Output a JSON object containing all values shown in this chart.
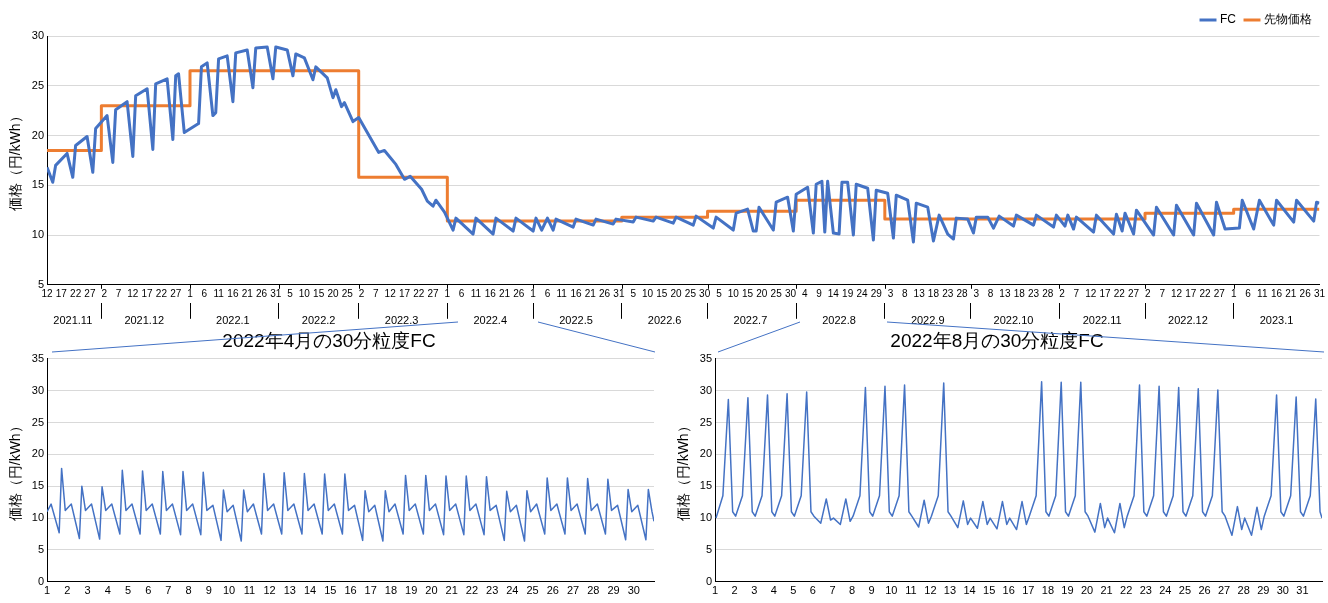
{
  "chart_data": [
    {
      "type": "line",
      "ylabel": "価格（円/kWh）",
      "xlim": [
        "2021-11-12",
        "2023-01-31"
      ],
      "xticks": [
        {
          "value": "2021-11-12",
          "label": "12"
        },
        {
          "value": "2021-11-17",
          "label": "17"
        },
        {
          "value": "2021-11-22",
          "label": "22"
        },
        {
          "value": "2021-11-27",
          "label": "27"
        },
        {
          "value": "2021-12-02",
          "label": "2"
        },
        {
          "value": "2021-12-07",
          "label": "7"
        },
        {
          "value": "2021-12-12",
          "label": "12"
        },
        {
          "value": "2021-12-17",
          "label": "17"
        },
        {
          "value": "2021-12-22",
          "label": "22"
        },
        {
          "value": "2021-12-27",
          "label": "27"
        },
        {
          "value": "2022-01-01",
          "label": "1"
        },
        {
          "value": "2022-01-06",
          "label": "6"
        },
        {
          "value": "2022-01-11",
          "label": "11"
        },
        {
          "value": "2022-01-16",
          "label": "16"
        },
        {
          "value": "2022-01-21",
          "label": "21"
        },
        {
          "value": "2022-01-26",
          "label": "26"
        },
        {
          "value": "2022-01-31",
          "label": "31"
        },
        {
          "value": "2022-02-05",
          "label": "5"
        },
        {
          "value": "2022-02-10",
          "label": "10"
        },
        {
          "value": "2022-02-15",
          "label": "15"
        },
        {
          "value": "2022-02-20",
          "label": "20"
        },
        {
          "value": "2022-02-25",
          "label": "25"
        },
        {
          "value": "2022-03-02",
          "label": "2"
        },
        {
          "value": "2022-03-07",
          "label": "7"
        },
        {
          "value": "2022-03-12",
          "label": "12"
        },
        {
          "value": "2022-03-17",
          "label": "17"
        },
        {
          "value": "2022-03-22",
          "label": "22"
        },
        {
          "value": "2022-03-27",
          "label": "27"
        },
        {
          "value": "2022-04-01",
          "label": "1"
        },
        {
          "value": "2022-04-06",
          "label": "6"
        },
        {
          "value": "2022-04-11",
          "label": "11"
        },
        {
          "value": "2022-04-16",
          "label": "16"
        },
        {
          "value": "2022-04-21",
          "label": "21"
        },
        {
          "value": "2022-04-26",
          "label": "26"
        },
        {
          "value": "2022-05-01",
          "label": "1"
        },
        {
          "value": "2022-05-06",
          "label": "6"
        },
        {
          "value": "2022-05-11",
          "label": "11"
        },
        {
          "value": "2022-05-16",
          "label": "16"
        },
        {
          "value": "2022-05-21",
          "label": "21"
        },
        {
          "value": "2022-05-26",
          "label": "26"
        },
        {
          "value": "2022-05-31",
          "label": "31"
        },
        {
          "value": "2022-06-05",
          "label": "5"
        },
        {
          "value": "2022-06-10",
          "label": "10"
        },
        {
          "value": "2022-06-15",
          "label": "15"
        },
        {
          "value": "2022-06-20",
          "label": "20"
        },
        {
          "value": "2022-06-25",
          "label": "25"
        },
        {
          "value": "2022-06-30",
          "label": "30"
        },
        {
          "value": "2022-07-05",
          "label": "5"
        },
        {
          "value": "2022-07-10",
          "label": "10"
        },
        {
          "value": "2022-07-15",
          "label": "15"
        },
        {
          "value": "2022-07-20",
          "label": "20"
        },
        {
          "value": "2022-07-25",
          "label": "25"
        },
        {
          "value": "2022-07-30",
          "label": "30"
        },
        {
          "value": "2022-08-04",
          "label": "4"
        },
        {
          "value": "2022-08-09",
          "label": "9"
        },
        {
          "value": "2022-08-14",
          "label": "14"
        },
        {
          "value": "2022-08-19",
          "label": "19"
        },
        {
          "value": "2022-08-24",
          "label": "24"
        },
        {
          "value": "2022-08-29",
          "label": "29"
        },
        {
          "value": "2022-09-03",
          "label": "3"
        },
        {
          "value": "2022-09-08",
          "label": "8"
        },
        {
          "value": "2022-09-13",
          "label": "13"
        },
        {
          "value": "2022-09-18",
          "label": "18"
        },
        {
          "value": "2022-09-23",
          "label": "23"
        },
        {
          "value": "2022-09-28",
          "label": "28"
        },
        {
          "value": "2022-10-03",
          "label": "3"
        },
        {
          "value": "2022-10-08",
          "label": "8"
        },
        {
          "value": "2022-10-13",
          "label": "13"
        },
        {
          "value": "2022-10-18",
          "label": "18"
        },
        {
          "value": "2022-10-23",
          "label": "23"
        },
        {
          "value": "2022-10-28",
          "label": "28"
        },
        {
          "value": "2022-11-02",
          "label": "2"
        },
        {
          "value": "2022-11-07",
          "label": "7"
        },
        {
          "value": "2022-11-12",
          "label": "12"
        },
        {
          "value": "2022-11-17",
          "label": "17"
        },
        {
          "value": "2022-11-22",
          "label": "22"
        },
        {
          "value": "2022-11-27",
          "label": "27"
        },
        {
          "value": "2022-12-02",
          "label": "2"
        },
        {
          "value": "2022-12-07",
          "label": "7"
        },
        {
          "value": "2022-12-12",
          "label": "12"
        },
        {
          "value": "2022-12-17",
          "label": "17"
        },
        {
          "value": "2022-12-22",
          "label": "22"
        },
        {
          "value": "2022-12-27",
          "label": "27"
        },
        {
          "value": "2023-01-01",
          "label": "1"
        },
        {
          "value": "2023-01-06",
          "label": "6"
        },
        {
          "value": "2023-01-11",
          "label": "11"
        },
        {
          "value": "2023-01-16",
          "label": "16"
        },
        {
          "value": "2023-01-21",
          "label": "21"
        },
        {
          "value": "2023-01-26",
          "label": "26"
        },
        {
          "value": "2023-01-31",
          "label": "31"
        }
      ],
      "x2lim": [
        "2021-11-12",
        "2023-01-31"
      ],
      "x2ticks": [
        {
          "value": "2021-11-21",
          "label": "2021.11"
        },
        {
          "value": "2021-12-01",
          "label": null
        },
        {
          "value": "2021-12-16",
          "label": "2021.12"
        },
        {
          "value": "2022-01-01",
          "label": null
        },
        {
          "value": "2022-01-16",
          "label": "2022.1"
        },
        {
          "value": "2022-02-01",
          "label": null
        },
        {
          "value": "2022-02-15",
          "label": "2022.2"
        },
        {
          "value": "2022-03-01",
          "label": null
        },
        {
          "value": "2022-03-16",
          "label": "2022.3"
        },
        {
          "value": "2022-04-01",
          "label": null
        },
        {
          "value": "2022-04-16",
          "label": "2022.4"
        },
        {
          "value": "2022-05-01",
          "label": null
        },
        {
          "value": "2022-05-16",
          "label": "2022.5"
        },
        {
          "value": "2022-06-01",
          "label": null
        },
        {
          "value": "2022-06-16",
          "label": "2022.6"
        },
        {
          "value": "2022-07-01",
          "label": null
        },
        {
          "value": "2022-07-16",
          "label": "2022.7"
        },
        {
          "value": "2022-08-01",
          "label": null
        },
        {
          "value": "2022-08-16",
          "label": "2022.8"
        },
        {
          "value": "2022-09-01",
          "label": null
        },
        {
          "value": "2022-09-16",
          "label": "2022.9"
        },
        {
          "value": "2022-10-01",
          "label": null
        },
        {
          "value": "2022-10-16",
          "label": "2022.10"
        },
        {
          "value": "2022-11-01",
          "label": null
        },
        {
          "value": "2022-11-16",
          "label": "2022.11"
        },
        {
          "value": "2022-12-01",
          "label": null
        },
        {
          "value": "2022-12-16",
          "label": "2022.12"
        },
        {
          "value": "2023-01-01",
          "label": null
        },
        {
          "value": "2023-01-16",
          "label": "2023.1"
        }
      ],
      "ylim": [
        5,
        30
      ],
      "yticks": [
        5,
        10,
        15,
        20,
        25,
        30
      ],
      "grid": "y",
      "legend": "top right",
      "marker": "none",
      "series": [
        {
          "name": "FC",
          "color": "#4472c4",
          "x": [
            "2021-11-12",
            "2021-11-14",
            "2021-11-15",
            "2021-11-19",
            "2021-11-21",
            "2021-11-22",
            "2021-11-26",
            "2021-11-28",
            "2021-11-29",
            "2021-12-03",
            "2021-12-05",
            "2021-12-06",
            "2021-12-10",
            "2021-12-12",
            "2021-12-13",
            "2021-12-17",
            "2021-12-19",
            "2021-12-20",
            "2021-12-24",
            "2021-12-26",
            "2021-12-27",
            "2021-12-28",
            "2021-12-30",
            "2022-01-04",
            "2022-01-05",
            "2022-01-07",
            "2022-01-09",
            "2022-01-10",
            "2022-01-11",
            "2022-01-14",
            "2022-01-16",
            "2022-01-17",
            "2022-01-21",
            "2022-01-23",
            "2022-01-24",
            "2022-01-28",
            "2022-01-30",
            "2022-01-31",
            "2022-02-04",
            "2022-02-06",
            "2022-02-07",
            "2022-02-10",
            "2022-02-13",
            "2022-02-14",
            "2022-02-18",
            "2022-02-20",
            "2022-02-21",
            "2022-02-23",
            "2022-02-24",
            "2022-02-27",
            "2022-03-01",
            "2022-03-04",
            "2022-03-08",
            "2022-03-10",
            "2022-03-14",
            "2022-03-17",
            "2022-03-19",
            "2022-03-23",
            "2022-03-25",
            "2022-03-27",
            "2022-03-28",
            "2022-03-31",
            "2022-04-03",
            "2022-04-04",
            "2022-04-10",
            "2022-04-11",
            "2022-04-17",
            "2022-04-18",
            "2022-04-24",
            "2022-04-25",
            "2022-05-01",
            "2022-05-02",
            "2022-05-04",
            "2022-05-06",
            "2022-05-08",
            "2022-05-09",
            "2022-05-15",
            "2022-05-16",
            "2022-05-22",
            "2022-05-23",
            "2022-05-29",
            "2022-05-30",
            "2022-06-05",
            "2022-06-06",
            "2022-06-12",
            "2022-06-13",
            "2022-06-19",
            "2022-06-20",
            "2022-06-26",
            "2022-06-27",
            "2022-07-03",
            "2022-07-04",
            "2022-07-10",
            "2022-07-11",
            "2022-07-15",
            "2022-07-17",
            "2022-07-18",
            "2022-07-19",
            "2022-07-24",
            "2022-07-25",
            "2022-07-29",
            "2022-07-31",
            "2022-08-01",
            "2022-08-05",
            "2022-08-07",
            "2022-08-08",
            "2022-08-10",
            "2022-08-11",
            "2022-08-12",
            "2022-08-14",
            "2022-08-16",
            "2022-08-17",
            "2022-08-19",
            "2022-08-21",
            "2022-08-22",
            "2022-08-26",
            "2022-08-28",
            "2022-08-29",
            "2022-09-02",
            "2022-09-04",
            "2022-09-05",
            "2022-09-09",
            "2022-09-11",
            "2022-09-12",
            "2022-09-16",
            "2022-09-18",
            "2022-09-20",
            "2022-09-23",
            "2022-09-25",
            "2022-09-26",
            "2022-09-30",
            "2022-10-02",
            "2022-10-03",
            "2022-10-07",
            "2022-10-09",
            "2022-10-11",
            "2022-10-16",
            "2022-10-17",
            "2022-10-23",
            "2022-10-24",
            "2022-10-30",
            "2022-10-31",
            "2022-11-03",
            "2022-11-04",
            "2022-11-06",
            "2022-11-07",
            "2022-11-13",
            "2022-11-14",
            "2022-11-20",
            "2022-11-21",
            "2022-11-23",
            "2022-11-24",
            "2022-11-27",
            "2022-11-28",
            "2022-12-04",
            "2022-12-05",
            "2022-12-11",
            "2022-12-12",
            "2022-12-18",
            "2022-12-19",
            "2022-12-25",
            "2022-12-26",
            "2022-12-29",
            "2023-01-03",
            "2023-01-04",
            "2023-01-08",
            "2023-01-10",
            "2023-01-15",
            "2023-01-16",
            "2023-01-22",
            "2023-01-23",
            "2023-01-29",
            "2023-01-30",
            "2023-01-31"
          ],
          "values": [
            16.8,
            15.3,
            17.0,
            18.2,
            15.8,
            19.0,
            19.9,
            16.3,
            20.7,
            22.0,
            17.3,
            22.6,
            23.4,
            17.9,
            24.0,
            24.7,
            18.6,
            25.2,
            25.7,
            19.6,
            26.0,
            26.2,
            20.3,
            21.2,
            26.9,
            27.3,
            22.0,
            22.3,
            27.7,
            28.0,
            23.4,
            28.3,
            28.6,
            24.8,
            28.8,
            28.9,
            25.7,
            28.9,
            28.6,
            26.0,
            28.2,
            27.8,
            25.6,
            26.9,
            25.8,
            23.8,
            24.6,
            22.9,
            23.3,
            21.4,
            21.8,
            20.3,
            18.3,
            18.5,
            17.1,
            15.6,
            15.9,
            14.6,
            13.4,
            12.9,
            13.5,
            12.3,
            10.5,
            11.7,
            10.1,
            11.7,
            10.1,
            11.7,
            10.4,
            11.7,
            10.4,
            11.7,
            10.5,
            11.7,
            10.5,
            11.6,
            10.8,
            11.6,
            11.0,
            11.6,
            11.1,
            11.6,
            11.3,
            11.8,
            11.4,
            11.8,
            11.2,
            11.8,
            11.0,
            11.9,
            10.7,
            11.8,
            10.5,
            12.2,
            12.6,
            10.4,
            10.4,
            12.8,
            10.5,
            13.3,
            13.8,
            10.4,
            14.1,
            14.8,
            10.2,
            15.1,
            15.4,
            10.3,
            15.4,
            10.2,
            10.1,
            15.3,
            15.3,
            10.0,
            15.1,
            14.7,
            9.5,
            14.5,
            14.2,
            9.7,
            14.0,
            13.5,
            9.3,
            13.2,
            12.8,
            9.4,
            12.0,
            10.1,
            9.6,
            11.7,
            11.6,
            10.2,
            11.8,
            11.8,
            10.7,
            11.9,
            10.9,
            12.0,
            11.0,
            12.0,
            10.8,
            12.0,
            10.9,
            12.0,
            10.6,
            11.8,
            10.3,
            12.0,
            10.1,
            12.1,
            10.4,
            12.2,
            10.1,
            12.5,
            10.0,
            12.8,
            10.0,
            13.0,
            10.0,
            13.2,
            10.0,
            13.3,
            10.6,
            10.7,
            13.5,
            10.6,
            13.5,
            11.0,
            13.5,
            11.3,
            13.5,
            11.4,
            13.3,
            13.2
          ]
        },
        {
          "name": "先物価格",
          "type": "step",
          "color": "#ed7d31",
          "x": [
            "2021-11-12",
            "2021-12-01",
            "2022-01-01",
            "2022-03-01",
            "2022-04-01",
            "2022-06-01",
            "2022-07-01",
            "2022-08-01",
            "2022-09-01",
            "2022-12-01",
            "2023-01-01",
            "2023-01-31"
          ],
          "values": [
            18.5,
            23.0,
            26.5,
            15.8,
            11.4,
            11.8,
            12.4,
            13.5,
            11.6,
            12.2,
            12.6,
            12.6
          ]
        }
      ]
    },
    {
      "type": "line",
      "title": "2022年4月の30分粒度FC",
      "ylabel": "価格（円/kWh）",
      "xlim": [
        1,
        31
      ],
      "xticks": [
        1,
        2,
        3,
        4,
        5,
        6,
        7,
        8,
        9,
        10,
        11,
        12,
        13,
        14,
        15,
        16,
        17,
        18,
        19,
        20,
        21,
        22,
        23,
        24,
        25,
        26,
        27,
        28,
        29,
        30
      ],
      "ylim": [
        0,
        35
      ],
      "yticks": [
        0,
        5,
        10,
        15,
        20,
        25,
        30,
        35
      ],
      "grid": "y",
      "marker": "none",
      "series": [
        {
          "color": "#4472c4",
          "x": [
            1,
            1.2,
            1.6,
            1.72,
            1.9,
            2.2,
            2.6,
            2.72,
            2.9,
            3.2,
            3.6,
            3.72,
            3.9,
            4.2,
            4.6,
            4.72,
            4.9,
            5.2,
            5.6,
            5.72,
            5.9,
            6.2,
            6.6,
            6.72,
            6.9,
            7.2,
            7.6,
            7.72,
            7.9,
            8.2,
            8.6,
            8.72,
            8.9,
            9.2,
            9.6,
            9.72,
            9.9,
            10.2,
            10.6,
            10.72,
            10.9,
            11.2,
            11.6,
            11.72,
            11.9,
            12.2,
            12.6,
            12.72,
            12.9,
            13.2,
            13.6,
            13.72,
            13.9,
            14.2,
            14.6,
            14.72,
            14.9,
            15.2,
            15.6,
            15.72,
            15.9,
            16.2,
            16.6,
            16.72,
            16.9,
            17.2,
            17.6,
            17.72,
            17.9,
            18.2,
            18.6,
            18.72,
            18.9,
            19.2,
            19.6,
            19.72,
            19.9,
            20.2,
            20.6,
            20.72,
            20.9,
            21.2,
            21.6,
            21.72,
            21.9,
            22.2,
            22.6,
            22.72,
            22.9,
            23.2,
            23.6,
            23.72,
            23.9,
            24.2,
            24.6,
            24.72,
            24.9,
            25.2,
            25.6,
            25.72,
            25.9,
            26.2,
            26.6,
            26.72,
            26.9,
            27.2,
            27.6,
            27.72,
            27.9,
            28.2,
            28.6,
            28.72,
            28.9,
            29.2,
            29.6,
            29.72,
            29.9,
            30.2,
            30.6,
            30.72,
            30.9,
            31
          ],
          "values": [
            11.0,
            12.2,
            7.7,
            17.8,
            11.2,
            12.2,
            6.8,
            15.0,
            11.2,
            12.2,
            6.7,
            14.9,
            11.2,
            12.2,
            7.5,
            17.5,
            11.2,
            12.2,
            7.5,
            17.4,
            11.2,
            12.2,
            7.5,
            17.3,
            11.2,
            12.2,
            7.4,
            17.3,
            11.2,
            12.2,
            7.4,
            17.2,
            11.2,
            12.0,
            6.5,
            14.4,
            11.0,
            12.0,
            6.4,
            14.4,
            11.0,
            12.2,
            7.5,
            17.0,
            11.2,
            12.2,
            7.5,
            17.1,
            11.2,
            12.2,
            7.5,
            17.0,
            11.2,
            12.2,
            7.5,
            16.9,
            11.2,
            12.2,
            7.5,
            16.9,
            11.2,
            12.0,
            6.5,
            14.3,
            11.0,
            12.0,
            6.4,
            14.3,
            11.0,
            12.2,
            7.5,
            16.7,
            11.2,
            12.2,
            7.5,
            16.7,
            11.2,
            12.2,
            7.4,
            16.6,
            11.2,
            12.2,
            7.4,
            16.6,
            11.2,
            12.2,
            7.4,
            16.5,
            11.2,
            12.0,
            6.5,
            14.2,
            11.0,
            12.0,
            6.4,
            14.3,
            11.0,
            12.2,
            7.5,
            16.3,
            11.2,
            12.2,
            7.5,
            16.3,
            11.2,
            12.2,
            7.5,
            16.2,
            11.2,
            12.2,
            7.5,
            16.1,
            11.2,
            12.0,
            6.6,
            14.5,
            11.0,
            12.0,
            6.6,
            14.5,
            11.0,
            9.5
          ]
        }
      ]
    },
    {
      "type": "line",
      "title": "2022年8月の30分粒度FC",
      "ylabel": "価格（円/kWh）",
      "xlim": [
        1,
        32
      ],
      "xticks": [
        1,
        2,
        3,
        4,
        5,
        6,
        7,
        8,
        9,
        10,
        11,
        12,
        13,
        14,
        15,
        16,
        17,
        18,
        19,
        20,
        21,
        22,
        23,
        24,
        25,
        26,
        27,
        28,
        29,
        30,
        31
      ],
      "ylim": [
        0,
        35
      ],
      "yticks": [
        0,
        5,
        10,
        15,
        20,
        25,
        30,
        35
      ],
      "grid": "y",
      "marker": "none",
      "series": [
        {
          "color": "#4472c4",
          "x": [
            1.05,
            1.4,
            1.68,
            1.9,
            2.05,
            2.4,
            2.68,
            2.9,
            3.05,
            3.4,
            3.68,
            3.9,
            4.05,
            4.4,
            4.68,
            4.9,
            5.05,
            5.4,
            5.68,
            5.9,
            6.05,
            6.4,
            6.68,
            6.9,
            7.05,
            7.4,
            7.68,
            7.9,
            8.05,
            8.4,
            8.68,
            8.9,
            9.05,
            9.4,
            9.68,
            9.9,
            10.05,
            10.4,
            10.68,
            10.9,
            11.05,
            11.4,
            11.68,
            11.9,
            12.05,
            12.4,
            12.68,
            12.9,
            13.05,
            13.4,
            13.68,
            13.9,
            14.05,
            14.4,
            14.68,
            14.9,
            15.05,
            15.4,
            15.68,
            15.9,
            16.05,
            16.4,
            16.68,
            16.9,
            17.05,
            17.4,
            17.68,
            17.9,
            18.05,
            18.4,
            18.68,
            18.9,
            19.05,
            19.4,
            19.68,
            19.9,
            20.05,
            20.4,
            20.68,
            20.9,
            21.05,
            21.4,
            21.68,
            21.9,
            22.05,
            22.4,
            22.68,
            22.9,
            23.05,
            23.4,
            23.68,
            23.9,
            24.05,
            24.4,
            24.68,
            24.9,
            25.05,
            25.4,
            25.68,
            25.9,
            26.05,
            26.4,
            26.68,
            26.9,
            27.05,
            27.4,
            27.68,
            27.9,
            28.05,
            28.4,
            28.68,
            28.9,
            29.05,
            29.4,
            29.68,
            29.9,
            30.05,
            30.4,
            30.68,
            30.9,
            31.05,
            31.4,
            31.68,
            31.9,
            32
          ],
          "values": [
            10.0,
            13.5,
            28.6,
            11.0,
            10.3,
            13.5,
            28.9,
            11.0,
            10.3,
            13.5,
            29.3,
            11.0,
            10.3,
            13.5,
            29.5,
            11.0,
            10.3,
            13.5,
            29.8,
            11.0,
            10.3,
            9.2,
            13.0,
            9.7,
            10.0,
            9.0,
            13.0,
            9.5,
            10.3,
            13.5,
            30.5,
            11.0,
            10.3,
            13.5,
            30.7,
            11.0,
            10.3,
            13.5,
            30.9,
            11.0,
            10.3,
            8.6,
            12.8,
            9.2,
            10.3,
            13.5,
            31.2,
            11.0,
            10.3,
            8.5,
            12.7,
            9.0,
            10.0,
            8.4,
            12.6,
            9.0,
            10.0,
            8.3,
            12.6,
            9.0,
            10.0,
            8.2,
            12.6,
            9.0,
            10.3,
            13.5,
            31.4,
            11.0,
            10.3,
            13.5,
            31.3,
            11.0,
            10.3,
            13.5,
            31.3,
            11.0,
            10.3,
            7.8,
            12.3,
            8.5,
            10.0,
            7.7,
            12.3,
            8.5,
            10.3,
            13.5,
            30.9,
            11.0,
            10.3,
            13.5,
            30.7,
            11.0,
            10.3,
            13.5,
            30.5,
            11.0,
            10.3,
            13.5,
            30.3,
            11.0,
            10.3,
            13.5,
            30.1,
            11.0,
            10.3,
            7.3,
            11.8,
            8.2,
            10.0,
            7.3,
            11.7,
            8.2,
            10.3,
            13.5,
            29.3,
            11.0,
            10.3,
            13.5,
            29.0,
            11.0,
            10.3,
            13.5,
            28.7,
            11.0,
            10.0
          ]
        }
      ]
    }
  ]
}
